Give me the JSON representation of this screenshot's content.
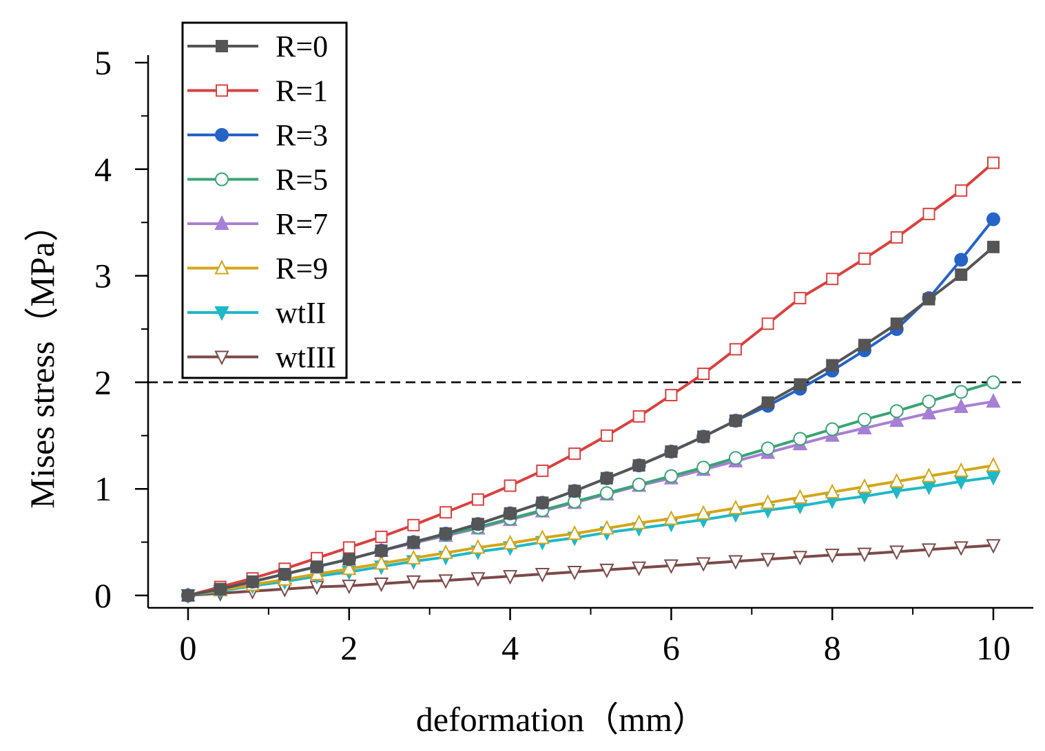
{
  "chart_data": {
    "type": "line",
    "xlabel": "deformation（mm）",
    "ylabel": "Mises stress（MPa）",
    "xlim": [
      -0.5,
      10.5
    ],
    "ylim": [
      -0.1,
      5.25
    ],
    "xticks": [
      0,
      2,
      4,
      6,
      8,
      10
    ],
    "yticks": [
      0,
      1,
      2,
      3,
      4,
      5
    ],
    "xtick_labels": [
      "0",
      "2",
      "4",
      "6",
      "8",
      "10"
    ],
    "ytick_labels": [
      "0",
      "1",
      "2",
      "3",
      "4",
      "5"
    ],
    "reference_line": {
      "y": 2,
      "style": "dashed"
    },
    "legend_position": "top-left",
    "x": [
      0,
      0.4,
      0.8,
      1.2,
      1.6,
      2.0,
      2.4,
      2.8,
      3.2,
      3.6,
      4.0,
      4.4,
      4.8,
      5.2,
      5.6,
      6.0,
      6.4,
      6.8,
      7.2,
      7.6,
      8.0,
      8.4,
      8.8,
      9.2,
      9.6,
      10.0
    ],
    "series": [
      {
        "name": "R=0",
        "color": "#555555",
        "marker": "square-filled",
        "values": [
          0,
          0.06,
          0.13,
          0.2,
          0.27,
          0.34,
          0.42,
          0.5,
          0.58,
          0.67,
          0.77,
          0.87,
          0.98,
          1.1,
          1.22,
          1.35,
          1.49,
          1.64,
          1.81,
          1.98,
          2.16,
          2.35,
          2.55,
          2.78,
          3.01,
          3.27
        ]
      },
      {
        "name": "R=1",
        "color": "#d9413f",
        "marker": "square-open",
        "values": [
          0,
          0.08,
          0.16,
          0.25,
          0.35,
          0.45,
          0.55,
          0.66,
          0.78,
          0.9,
          1.03,
          1.17,
          1.33,
          1.5,
          1.68,
          1.88,
          2.08,
          2.31,
          2.55,
          2.79,
          2.97,
          3.16,
          3.36,
          3.58,
          3.8,
          4.06
        ]
      },
      {
        "name": "R=3",
        "color": "#2563c7",
        "marker": "circle-filled",
        "values": [
          0,
          0.06,
          0.13,
          0.2,
          0.27,
          0.34,
          0.42,
          0.5,
          0.58,
          0.67,
          0.77,
          0.87,
          0.98,
          1.1,
          1.22,
          1.35,
          1.49,
          1.64,
          1.78,
          1.94,
          2.11,
          2.3,
          2.5,
          2.79,
          3.15,
          3.53
        ]
      },
      {
        "name": "R=5",
        "color": "#3aa374",
        "marker": "circle-open",
        "values": [
          0,
          0.06,
          0.13,
          0.2,
          0.27,
          0.34,
          0.42,
          0.5,
          0.57,
          0.64,
          0.72,
          0.8,
          0.88,
          0.96,
          1.04,
          1.12,
          1.2,
          1.29,
          1.38,
          1.47,
          1.56,
          1.65,
          1.73,
          1.82,
          1.91,
          2.0
        ]
      },
      {
        "name": "R=7",
        "color": "#a77fd4",
        "marker": "triangle-up-filled",
        "values": [
          0,
          0.06,
          0.13,
          0.2,
          0.27,
          0.34,
          0.42,
          0.49,
          0.56,
          0.63,
          0.71,
          0.79,
          0.87,
          0.95,
          1.03,
          1.1,
          1.18,
          1.26,
          1.34,
          1.42,
          1.5,
          1.57,
          1.64,
          1.71,
          1.77,
          1.82
        ]
      },
      {
        "name": "R=9",
        "color": "#d4a517",
        "marker": "triangle-up-open",
        "values": [
          0,
          0.05,
          0.1,
          0.15,
          0.2,
          0.25,
          0.3,
          0.35,
          0.4,
          0.45,
          0.49,
          0.54,
          0.58,
          0.63,
          0.68,
          0.72,
          0.77,
          0.82,
          0.87,
          0.92,
          0.97,
          1.02,
          1.07,
          1.12,
          1.17,
          1.22
        ]
      },
      {
        "name": "wtII",
        "color": "#1fb8c8",
        "marker": "triangle-down-filled",
        "values": [
          0,
          0.04,
          0.09,
          0.13,
          0.18,
          0.22,
          0.27,
          0.32,
          0.36,
          0.41,
          0.45,
          0.5,
          0.54,
          0.59,
          0.63,
          0.67,
          0.71,
          0.76,
          0.8,
          0.84,
          0.89,
          0.93,
          0.98,
          1.02,
          1.07,
          1.11
        ]
      },
      {
        "name": "wtIII",
        "color": "#7b4a48",
        "marker": "triangle-down-open",
        "values": [
          0,
          0.02,
          0.04,
          0.06,
          0.08,
          0.09,
          0.11,
          0.13,
          0.14,
          0.16,
          0.18,
          0.2,
          0.22,
          0.24,
          0.26,
          0.28,
          0.3,
          0.32,
          0.34,
          0.36,
          0.38,
          0.39,
          0.41,
          0.43,
          0.45,
          0.47
        ]
      }
    ]
  }
}
